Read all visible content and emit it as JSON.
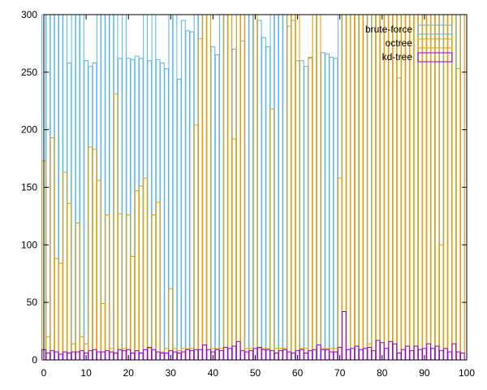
{
  "chart_data": {
    "type": "bar",
    "title": "",
    "xlabel": "",
    "ylabel": "",
    "xlim": [
      0,
      100
    ],
    "ylim": [
      0,
      300
    ],
    "xticks": [
      0,
      10,
      20,
      30,
      40,
      50,
      60,
      70,
      80,
      90,
      100
    ],
    "yticks": [
      0,
      50,
      100,
      150,
      200,
      250,
      300
    ],
    "grid": false,
    "legend": {
      "placement": "top-right"
    },
    "bar_style": "outline",
    "x": [
      0,
      1,
      2,
      3,
      4,
      5,
      6,
      7,
      8,
      9,
      10,
      11,
      12,
      13,
      14,
      15,
      16,
      17,
      18,
      19,
      20,
      21,
      22,
      23,
      24,
      25,
      26,
      27,
      28,
      29,
      30,
      31,
      32,
      33,
      34,
      35,
      36,
      37,
      38,
      39,
      40,
      41,
      42,
      43,
      44,
      45,
      46,
      47,
      48,
      49,
      50,
      51,
      52,
      53,
      54,
      55,
      56,
      57,
      58,
      59,
      60,
      61,
      62,
      63,
      64,
      65,
      66,
      67,
      68,
      69,
      70,
      71,
      72,
      73,
      74,
      75,
      76,
      77,
      78,
      79,
      80,
      81,
      82,
      83,
      84,
      85,
      86,
      87,
      88,
      89,
      90,
      91,
      92,
      93,
      94,
      95,
      96,
      97,
      98,
      99
    ],
    "series": [
      {
        "name": "brute-force",
        "color": "#56b4e9",
        "values": [
          300,
          300,
          300,
          300,
          300,
          300,
          258,
          300,
          300,
          300,
          260,
          255,
          258,
          300,
          300,
          300,
          300,
          300,
          262,
          300,
          262,
          261,
          264,
          262,
          300,
          260,
          300,
          261,
          258,
          253,
          300,
          300,
          244,
          295,
          286,
          285,
          300,
          300,
          300,
          300,
          272,
          265,
          300,
          300,
          300,
          270,
          300,
          277,
          300,
          300,
          300,
          295,
          280,
          272,
          300,
          300,
          300,
          300,
          290,
          295,
          260,
          260,
          255,
          262,
          300,
          300,
          267,
          266,
          263,
          262,
          300,
          300,
          300,
          300,
          300,
          300,
          300,
          300,
          300,
          300,
          300,
          300,
          300,
          300,
          245,
          300,
          300,
          300,
          300,
          300,
          300,
          300,
          300,
          300,
          300,
          300,
          300,
          300,
          300,
          300
        ]
      },
      {
        "name": "octree",
        "color": "#e69f00",
        "values": [
          173,
          20,
          193,
          88,
          84,
          163,
          136,
          14,
          119,
          20,
          14,
          185,
          183,
          156,
          49,
          126,
          10,
          231,
          127,
          10,
          126,
          90,
          147,
          151,
          158,
          10,
          126,
          137,
          7,
          10,
          62,
          10,
          8,
          10,
          10,
          10,
          204,
          279,
          300,
          300,
          10,
          10,
          10,
          300,
          300,
          192,
          300,
          300,
          10,
          10,
          300,
          10,
          10,
          10,
          218,
          10,
          10,
          10,
          300,
          300,
          300,
          10,
          10,
          263,
          300,
          300,
          10,
          10,
          10,
          10,
          158,
          300,
          300,
          300,
          300,
          300,
          300,
          14,
          300,
          300,
          300,
          300,
          300,
          300,
          300,
          300,
          300,
          300,
          300,
          300,
          300,
          300,
          300,
          300,
          100,
          300,
          300,
          300,
          253,
          300
        ]
      },
      {
        "name": "kd-tree",
        "color": "#9400d3",
        "values": [
          9,
          6,
          8,
          7,
          5,
          7,
          6,
          7,
          7,
          8,
          6,
          8,
          9,
          7,
          7,
          8,
          7,
          6,
          9,
          8,
          9,
          6,
          8,
          6,
          9,
          11,
          9,
          7,
          6,
          6,
          8,
          7,
          6,
          7,
          9,
          8,
          9,
          9,
          13,
          9,
          7,
          9,
          8,
          11,
          10,
          12,
          16,
          8,
          7,
          8,
          10,
          11,
          9,
          9,
          8,
          6,
          8,
          9,
          7,
          6,
          8,
          9,
          6,
          8,
          9,
          13,
          9,
          9,
          7,
          7,
          11,
          42,
          9,
          10,
          12,
          9,
          10,
          11,
          8,
          17,
          15,
          10,
          16,
          14,
          6,
          9,
          12,
          8,
          12,
          9,
          10,
          14,
          10,
          12,
          8,
          10,
          7,
          14,
          7,
          6
        ]
      }
    ]
  }
}
